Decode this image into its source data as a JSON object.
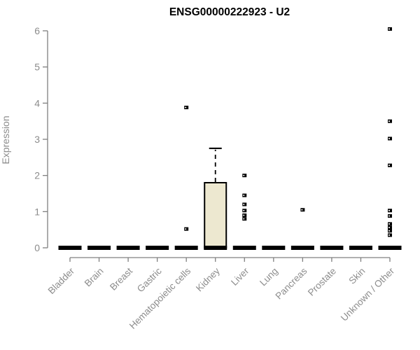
{
  "title": "ENSG00000222923 - U2",
  "chart_data": {
    "type": "boxplot",
    "title": "ENSG00000222923 - U2",
    "xlabel": "",
    "ylabel": "Expression",
    "ylim": [
      0,
      6
    ],
    "yticks": [
      0,
      1,
      2,
      3,
      4,
      5,
      6
    ],
    "grid": false,
    "legend": false,
    "categories": [
      "Bladder",
      "Brain",
      "Breast",
      "Gastric",
      "Hematopoietic cells",
      "Kidney",
      "Liver",
      "Lung",
      "Pancreas",
      "Prostate",
      "Skin",
      "Unknown / Other"
    ],
    "boxes": [
      {
        "category": "Bladder",
        "whisker_low": 0,
        "q1": 0,
        "median": 0,
        "q3": 0,
        "whisker_high": 0,
        "outliers": []
      },
      {
        "category": "Brain",
        "whisker_low": 0,
        "q1": 0,
        "median": 0,
        "q3": 0,
        "whisker_high": 0,
        "outliers": []
      },
      {
        "category": "Breast",
        "whisker_low": 0,
        "q1": 0,
        "median": 0,
        "q3": 0,
        "whisker_high": 0,
        "outliers": []
      },
      {
        "category": "Gastric",
        "whisker_low": 0,
        "q1": 0,
        "median": 0,
        "q3": 0,
        "whisker_high": 0,
        "outliers": []
      },
      {
        "category": "Hematopoietic cells",
        "whisker_low": 0,
        "q1": 0,
        "median": 0,
        "q3": 0,
        "whisker_high": 0,
        "outliers": [
          3.88,
          0.52
        ]
      },
      {
        "category": "Kidney",
        "whisker_low": 0,
        "q1": 0,
        "median": 0,
        "q3": 1.8,
        "whisker_high": 2.75,
        "outliers": []
      },
      {
        "category": "Liver",
        "whisker_low": 0,
        "q1": 0,
        "median": 0,
        "q3": 0,
        "whisker_high": 0,
        "outliers": [
          2.0,
          1.45,
          1.2,
          1.03,
          0.9,
          0.8
        ]
      },
      {
        "category": "Lung",
        "whisker_low": 0,
        "q1": 0,
        "median": 0,
        "q3": 0,
        "whisker_high": 0,
        "outliers": []
      },
      {
        "category": "Pancreas",
        "whisker_low": 0,
        "q1": 0,
        "median": 0,
        "q3": 0,
        "whisker_high": 0,
        "outliers": [
          1.05
        ]
      },
      {
        "category": "Prostate",
        "whisker_low": 0,
        "q1": 0,
        "median": 0,
        "q3": 0,
        "whisker_high": 0,
        "outliers": []
      },
      {
        "category": "Skin",
        "whisker_low": 0,
        "q1": 0,
        "median": 0,
        "q3": 0,
        "whisker_high": 0,
        "outliers": []
      },
      {
        "category": "Unknown / Other",
        "whisker_low": 0,
        "q1": 0,
        "median": 0,
        "q3": 0,
        "whisker_high": 0,
        "outliers": [
          6.05,
          3.5,
          3.02,
          2.28,
          1.03,
          0.88,
          0.66,
          0.56,
          0.47,
          0.35
        ]
      }
    ],
    "colors": {
      "background": "#ffffff",
      "box_fill": "#EDE8D0",
      "box_stroke": "#000000",
      "outlier": "#000000",
      "axis_line": "#808080",
      "tick_text": "#8c8c8c",
      "title_text": "#000000"
    }
  }
}
